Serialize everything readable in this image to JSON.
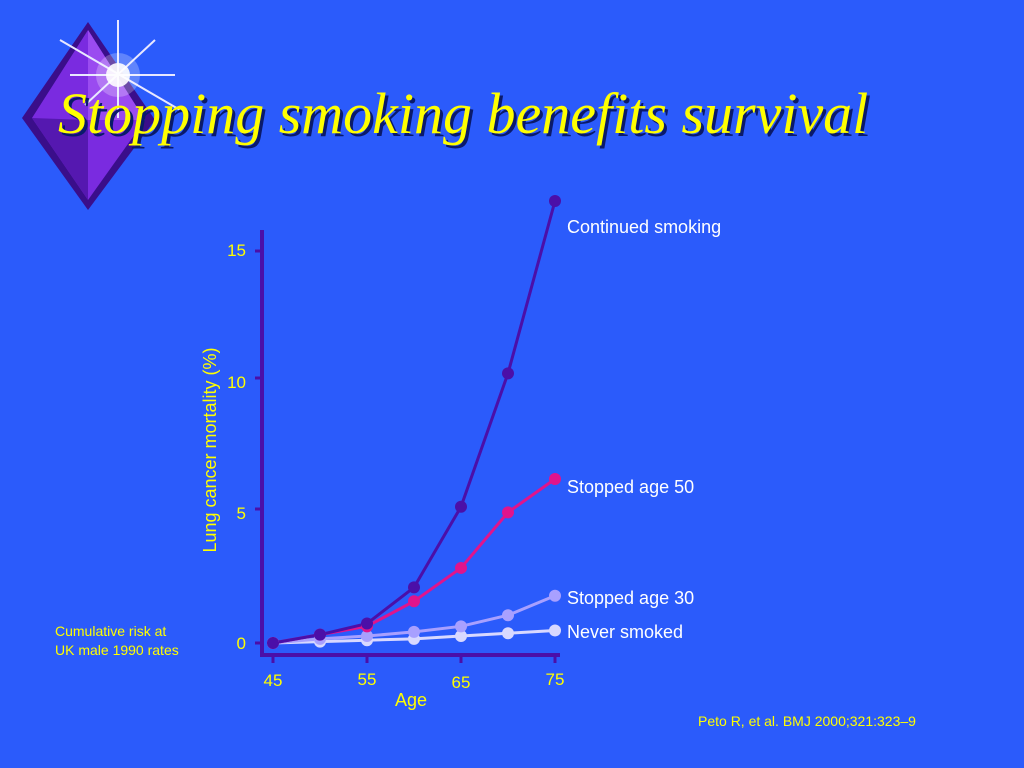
{
  "slide": {
    "title": "Stopping smoking benefits survival",
    "note_line1": "Cumulative risk at",
    "note_line2": "UK male 1990 rates",
    "citation": "Peto R, et al. BMJ 2000;321:323–9"
  },
  "decoration": {
    "icon": "diamond-star-icon"
  },
  "colors": {
    "background": "#2B5BFB",
    "title": "#FFFF00",
    "axis": "#4B0FA8",
    "labels": "#FFFF00",
    "series_labels": "#FFFFFF"
  },
  "chart_data": {
    "type": "line",
    "xlabel": "Age",
    "ylabel": "Lung cancer mortality (%)",
    "xlim": [
      45,
      75
    ],
    "ylim": [
      0,
      15
    ],
    "x_ticks": [
      45,
      55,
      65,
      75
    ],
    "y_ticks": [
      0,
      5,
      10,
      15
    ],
    "grid": false,
    "legend": "direct labels at line ends",
    "x": [
      45,
      50,
      55,
      60,
      65,
      70,
      75
    ],
    "series": [
      {
        "name": "Continued smoking",
        "color": "#4B0FA8",
        "values": [
          0.0,
          0.3,
          0.7,
          2.0,
          4.9,
          9.7,
          15.9
        ]
      },
      {
        "name": "Stopped age 50",
        "color": "#E0148C",
        "values": [
          0.0,
          0.3,
          0.6,
          1.5,
          2.7,
          4.7,
          5.9
        ]
      },
      {
        "name": "Stopped age 30",
        "color": "#A8A0FF",
        "values": [
          0.0,
          0.15,
          0.25,
          0.4,
          0.6,
          1.0,
          1.7
        ]
      },
      {
        "name": "Never smoked",
        "color": "#D8D8FF",
        "values": [
          0.0,
          0.05,
          0.1,
          0.15,
          0.25,
          0.35,
          0.45
        ]
      }
    ]
  }
}
